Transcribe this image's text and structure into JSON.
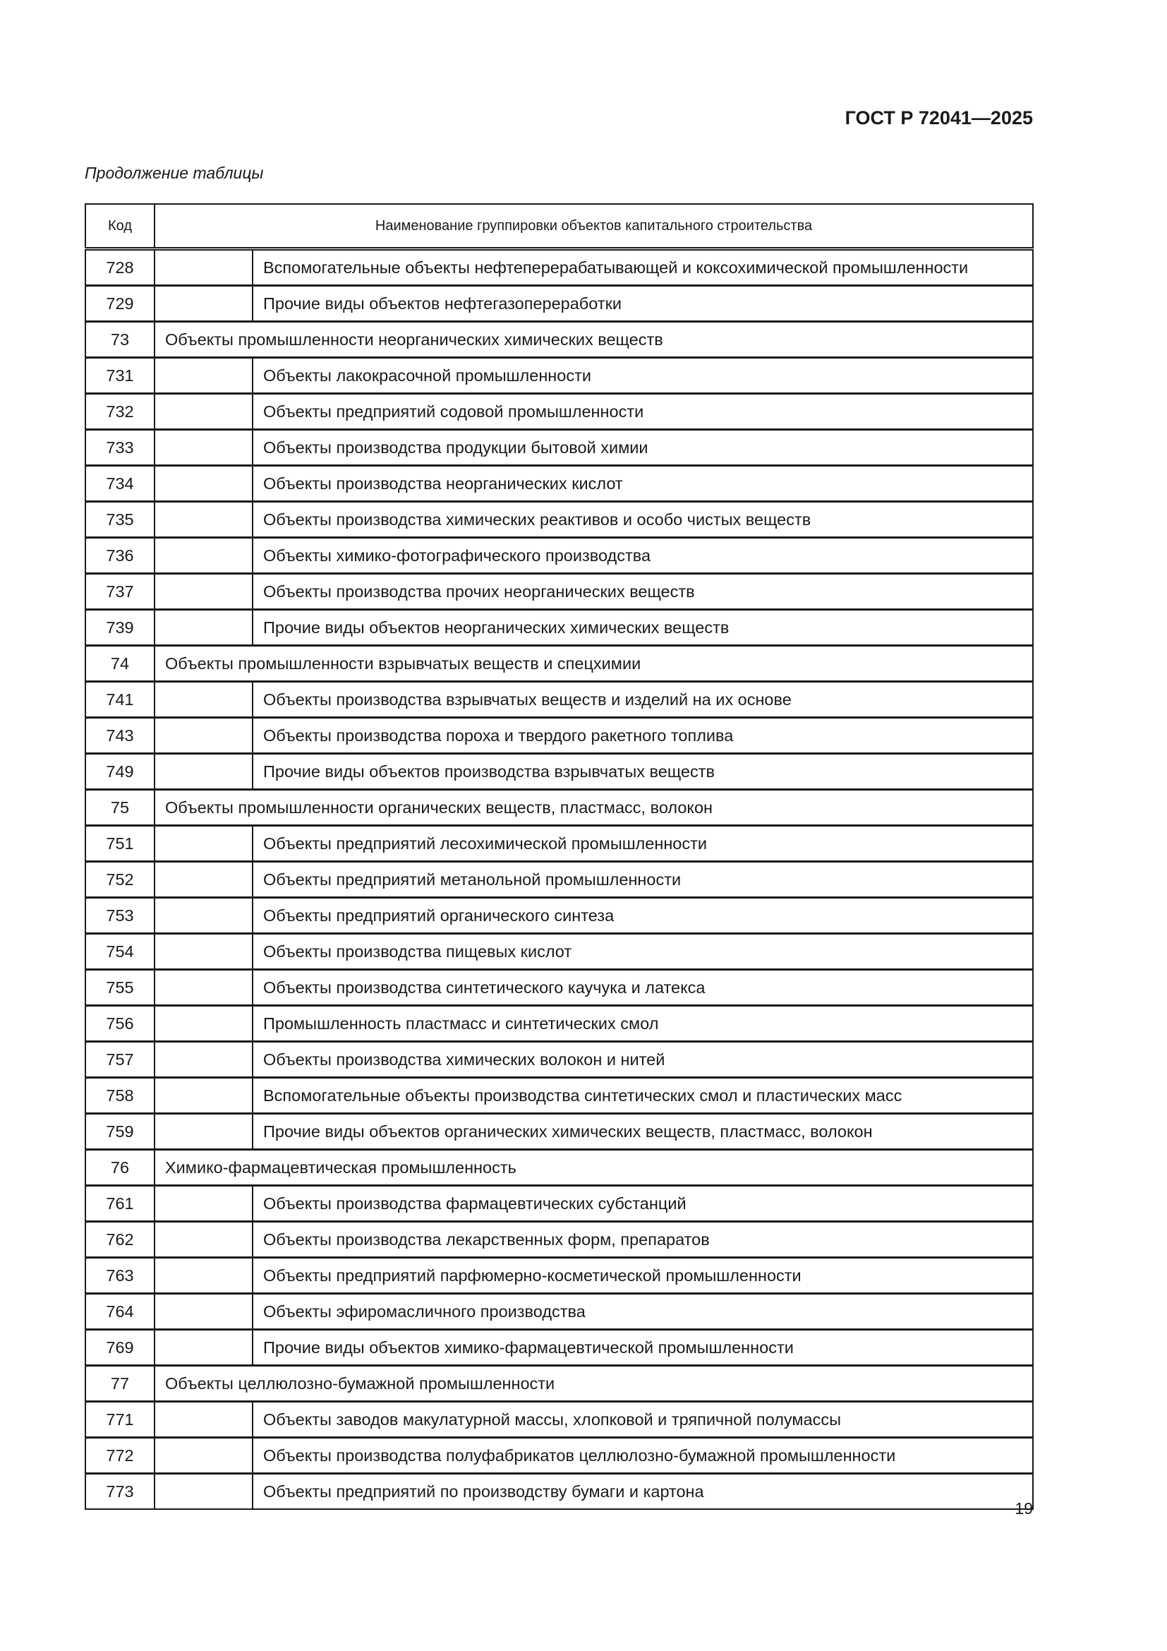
{
  "header": {
    "doc_id": "ГОСТ Р 72041—2025",
    "caption": "Продолжение таблицы"
  },
  "table": {
    "columns": {
      "code": "Код",
      "name": "Наименование группировки объектов капитального строительства"
    },
    "rows": [
      {
        "code": "728",
        "name": "Вспомогательные объекты нефтеперерабатывающей и коксохимической промышленности",
        "group": false
      },
      {
        "code": "729",
        "name": "Прочие виды объектов нефтегазопереработки",
        "group": false
      },
      {
        "code": "73",
        "name": "Объекты промышленности неорганических химических веществ",
        "group": true
      },
      {
        "code": "731",
        "name": "Объекты лакокрасочной промышленности",
        "group": false
      },
      {
        "code": "732",
        "name": "Объекты предприятий содовой промышленности",
        "group": false
      },
      {
        "code": "733",
        "name": "Объекты производства продукции бытовой химии",
        "group": false
      },
      {
        "code": "734",
        "name": "Объекты производства неорганических кислот",
        "group": false
      },
      {
        "code": "735",
        "name": "Объекты производства химических реактивов и особо чистых веществ",
        "group": false
      },
      {
        "code": "736",
        "name": "Объекты химико-фотографического производства",
        "group": false
      },
      {
        "code": "737",
        "name": "Объекты производства прочих неорганических веществ",
        "group": false
      },
      {
        "code": "739",
        "name": "Прочие виды объектов неорганических химических веществ",
        "group": false
      },
      {
        "code": "74",
        "name": "Объекты промышленности взрывчатых веществ и спецхимии",
        "group": true
      },
      {
        "code": "741",
        "name": "Объекты производства взрывчатых веществ и изделий на их основе",
        "group": false
      },
      {
        "code": "743",
        "name": "Объекты производства пороха и твердого ракетного топлива",
        "group": false
      },
      {
        "code": "749",
        "name": "Прочие виды объектов производства взрывчатых веществ",
        "group": false
      },
      {
        "code": "75",
        "name": "Объекты промышленности органических веществ, пластмасс, волокон",
        "group": true
      },
      {
        "code": "751",
        "name": "Объекты предприятий лесохимической промышленности",
        "group": false
      },
      {
        "code": "752",
        "name": "Объекты предприятий метанольной промышленности",
        "group": false
      },
      {
        "code": "753",
        "name": "Объекты предприятий органического синтеза",
        "group": false
      },
      {
        "code": "754",
        "name": "Объекты производства пищевых кислот",
        "group": false
      },
      {
        "code": "755",
        "name": "Объекты производства синтетического каучука и латекса",
        "group": false
      },
      {
        "code": "756",
        "name": "Промышленность пластмасс и синтетических смол",
        "group": false
      },
      {
        "code": "757",
        "name": "Объекты производства химических волокон и нитей",
        "group": false
      },
      {
        "code": "758",
        "name": "Вспомогательные объекты производства синтетических смол и пластических масс",
        "group": false
      },
      {
        "code": "759",
        "name": "Прочие виды объектов органических химических веществ, пластмасс, волокон",
        "group": false
      },
      {
        "code": "76",
        "name": "Химико-фармацевтическая промышленность",
        "group": true
      },
      {
        "code": "761",
        "name": "Объекты производства фармацевтических субстанций",
        "group": false
      },
      {
        "code": "762",
        "name": "Объекты производства лекарственных форм, препаратов",
        "group": false
      },
      {
        "code": "763",
        "name": "Объекты предприятий парфюмерно-косметической промышленности",
        "group": false
      },
      {
        "code": "764",
        "name": "Объекты эфиромасличного производства",
        "group": false
      },
      {
        "code": "769",
        "name": "Прочие виды объектов химико-фармацевтической промышленности",
        "group": false
      },
      {
        "code": "77",
        "name": "Объекты целлюлозно-бумажной промышленности",
        "group": true
      },
      {
        "code": "771",
        "name": "Объекты заводов макулатурной массы, хлопковой и тряпичной полумассы",
        "group": false
      },
      {
        "code": "772",
        "name": "Объекты производства полуфабрикатов целлюлозно-бумажной промышленности",
        "group": false
      },
      {
        "code": "773",
        "name": "Объекты предприятий по производству бумаги и картона",
        "group": false
      }
    ]
  },
  "footer": {
    "page_number": "19"
  }
}
